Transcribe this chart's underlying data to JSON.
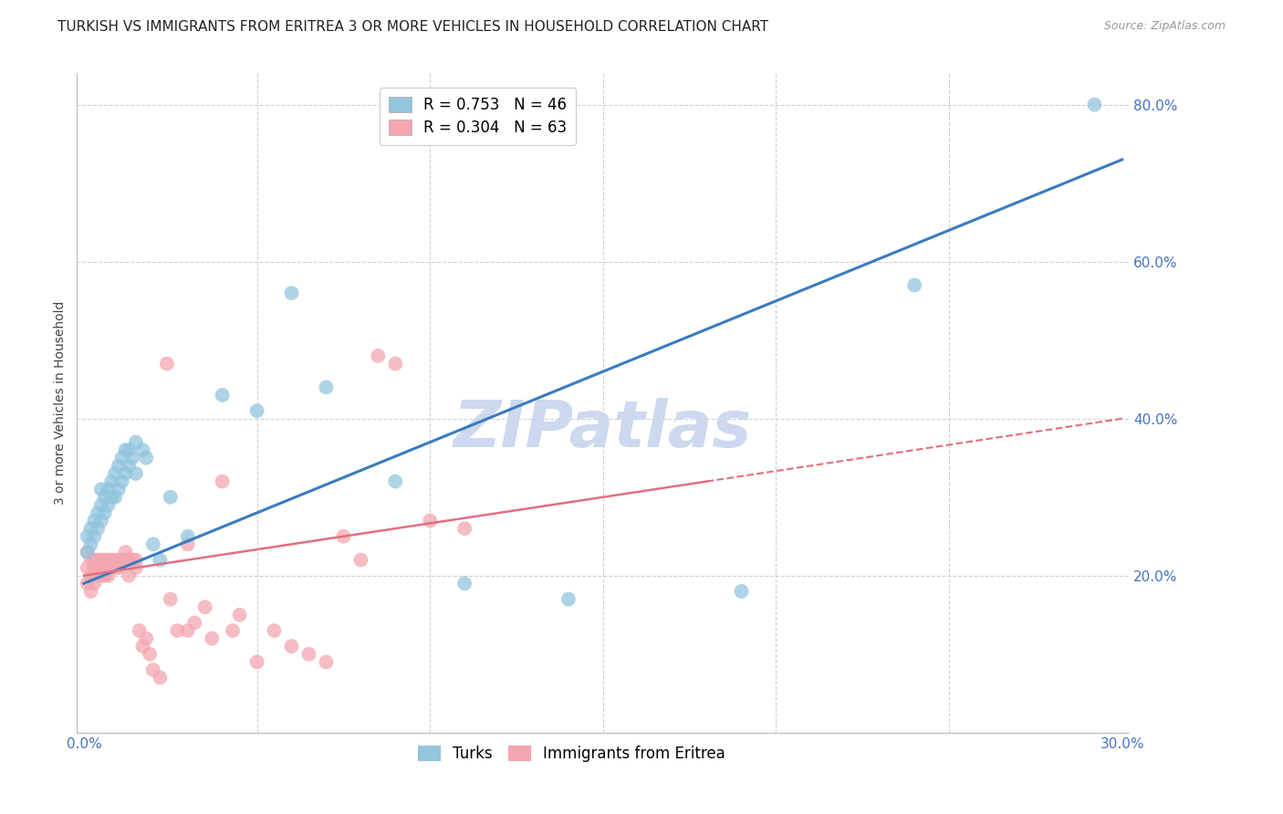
{
  "title": "TURKISH VS IMMIGRANTS FROM ERITREA 3 OR MORE VEHICLES IN HOUSEHOLD CORRELATION CHART",
  "source": "Source: ZipAtlas.com",
  "ylabel": "3 or more Vehicles in Household",
  "watermark": "ZIPatlas",
  "legend_blue_r": "R = 0.753",
  "legend_blue_n": "N = 46",
  "legend_pink_r": "R = 0.304",
  "legend_pink_n": "N = 63",
  "blue_color": "#92c5de",
  "pink_color": "#f4a6b0",
  "line_blue_color": "#3a7bbf",
  "line_pink_color": "#e07080",
  "turks_scatter_x": [
    0.001,
    0.001,
    0.002,
    0.002,
    0.003,
    0.003,
    0.004,
    0.004,
    0.005,
    0.005,
    0.005,
    0.006,
    0.006,
    0.007,
    0.007,
    0.008,
    0.008,
    0.009,
    0.009,
    0.01,
    0.01,
    0.011,
    0.011,
    0.012,
    0.012,
    0.013,
    0.013,
    0.014,
    0.015,
    0.015,
    0.017,
    0.018,
    0.02,
    0.022,
    0.025,
    0.03,
    0.04,
    0.05,
    0.06,
    0.07,
    0.09,
    0.11,
    0.14,
    0.19,
    0.24,
    0.292
  ],
  "turks_scatter_y": [
    0.23,
    0.25,
    0.24,
    0.26,
    0.25,
    0.27,
    0.26,
    0.28,
    0.27,
    0.29,
    0.31,
    0.28,
    0.3,
    0.29,
    0.31,
    0.3,
    0.32,
    0.3,
    0.33,
    0.31,
    0.34,
    0.32,
    0.35,
    0.33,
    0.36,
    0.34,
    0.36,
    0.35,
    0.33,
    0.37,
    0.36,
    0.35,
    0.24,
    0.22,
    0.3,
    0.25,
    0.43,
    0.41,
    0.56,
    0.44,
    0.32,
    0.19,
    0.17,
    0.18,
    0.57,
    0.8
  ],
  "eritrea_scatter_x": [
    0.001,
    0.001,
    0.001,
    0.002,
    0.002,
    0.002,
    0.003,
    0.003,
    0.003,
    0.004,
    0.004,
    0.004,
    0.005,
    0.005,
    0.005,
    0.006,
    0.006,
    0.006,
    0.007,
    0.007,
    0.007,
    0.008,
    0.008,
    0.009,
    0.009,
    0.01,
    0.01,
    0.011,
    0.012,
    0.012,
    0.013,
    0.013,
    0.014,
    0.015,
    0.015,
    0.016,
    0.017,
    0.018,
    0.019,
    0.02,
    0.022,
    0.024,
    0.025,
    0.027,
    0.03,
    0.03,
    0.032,
    0.035,
    0.037,
    0.04,
    0.043,
    0.045,
    0.05,
    0.055,
    0.06,
    0.065,
    0.07,
    0.075,
    0.08,
    0.085,
    0.09,
    0.1,
    0.11
  ],
  "eritrea_scatter_y": [
    0.23,
    0.21,
    0.19,
    0.22,
    0.2,
    0.18,
    0.22,
    0.21,
    0.19,
    0.22,
    0.21,
    0.2,
    0.22,
    0.21,
    0.2,
    0.22,
    0.21,
    0.2,
    0.22,
    0.21,
    0.2,
    0.22,
    0.21,
    0.22,
    0.21,
    0.22,
    0.21,
    0.22,
    0.23,
    0.22,
    0.22,
    0.2,
    0.22,
    0.22,
    0.21,
    0.13,
    0.11,
    0.12,
    0.1,
    0.08,
    0.07,
    0.47,
    0.17,
    0.13,
    0.24,
    0.13,
    0.14,
    0.16,
    0.12,
    0.32,
    0.13,
    0.15,
    0.09,
    0.13,
    0.11,
    0.1,
    0.09,
    0.25,
    0.22,
    0.48,
    0.47,
    0.27,
    0.26
  ],
  "blue_line_x": [
    0.0,
    0.3
  ],
  "blue_line_y": [
    0.19,
    0.73
  ],
  "pink_line_x": [
    0.0,
    0.3
  ],
  "pink_line_y": [
    0.2,
    0.4
  ],
  "xmin": -0.002,
  "xmax": 0.302,
  "ymin": 0.0,
  "ymax": 0.84,
  "xtick_positions": [
    0.0,
    0.05,
    0.1,
    0.15,
    0.2,
    0.25,
    0.3
  ],
  "ytick_positions": [
    0.2,
    0.4,
    0.6,
    0.8
  ],
  "ytick_labels": [
    "20.0%",
    "40.0%",
    "60.0%",
    "80.0%"
  ],
  "grid_color": "#d0d0d0",
  "background_color": "#ffffff",
  "title_fontsize": 11,
  "source_fontsize": 9,
  "tick_color": "#4472c4",
  "watermark_color": "#ccd9ee",
  "watermark_fontsize": 52
}
